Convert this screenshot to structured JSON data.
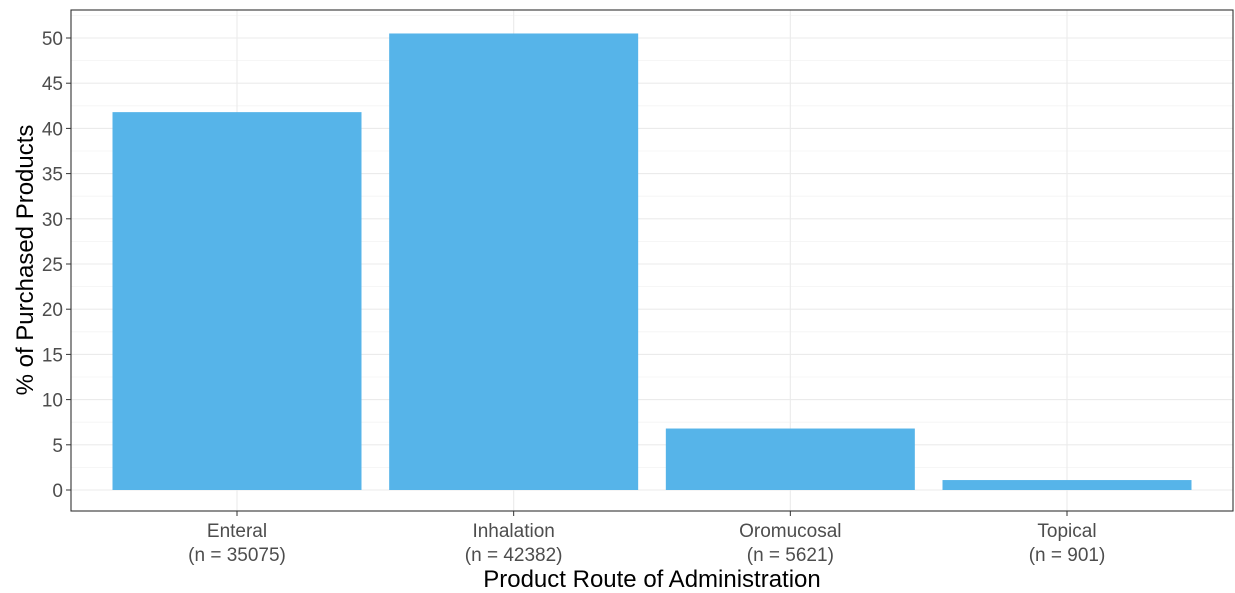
{
  "chart_data": {
    "type": "bar",
    "categories": [
      {
        "name": "Enteral",
        "n": "(n = 35075)"
      },
      {
        "name": "Inhalation",
        "n": "(n = 42382)"
      },
      {
        "name": "Oromucosal",
        "n": "(n = 5621)"
      },
      {
        "name": "Topical",
        "n": "(n = 901)"
      }
    ],
    "values": [
      41.8,
      50.5,
      6.8,
      1.1
    ],
    "xlabel": "Product Route of Administration",
    "ylabel": "% of Purchased Products",
    "ylim": [
      0,
      52.5
    ],
    "yticks": [
      0,
      5,
      10,
      15,
      20,
      25,
      30,
      35,
      40,
      45,
      50
    ],
    "grid": true,
    "bar_color": "#56b4e9"
  }
}
